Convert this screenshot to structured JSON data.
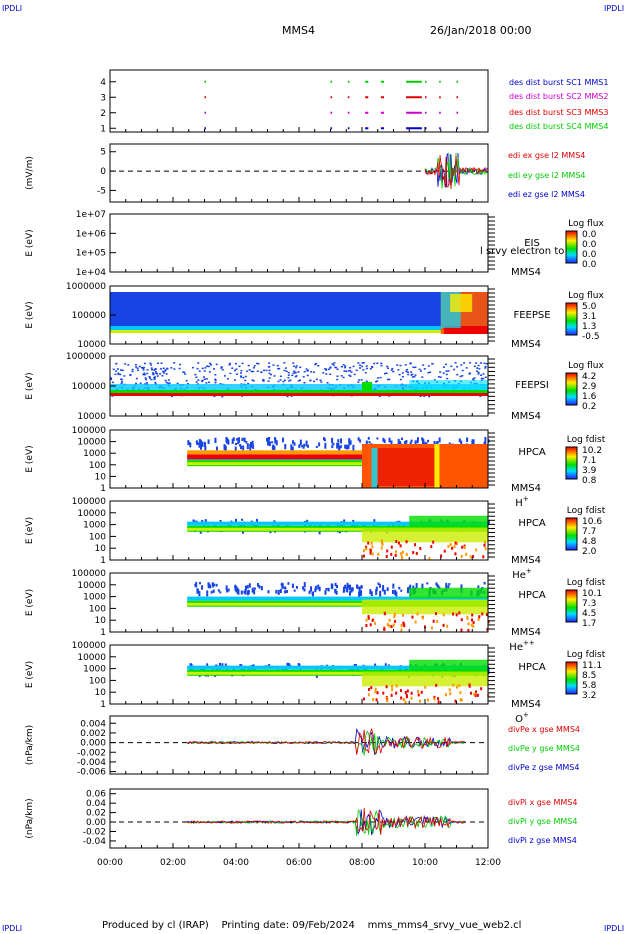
{
  "header": {
    "corner_label": "IPDLI",
    "mission": "MMS4",
    "date": "26/Jan/2018 00:00"
  },
  "footer": {
    "produced_by": "Produced by cl (IRAP)",
    "printing_date": "Printing date: 09/Feb/2024",
    "file": "mms_mms4_srvy_vue_web2.cl"
  },
  "chart_data": {
    "type": "line",
    "x_axis": {
      "ticks": [
        "00:00",
        "02:00",
        "04:00",
        "06:00",
        "08:00",
        "10:00",
        "12:00"
      ],
      "range_hours": [
        0,
        12
      ]
    },
    "colors": {
      "red": "#dd0000",
      "green": "#00cc00",
      "blue": "#0000cc",
      "magenta": "#cc00cc"
    },
    "panels": [
      {
        "id": "burst",
        "type": "scatter",
        "yticks": [
          "1",
          "2",
          "3",
          "4"
        ],
        "legend": [
          {
            "text": "des dist burst SC1 MMS1",
            "color": "#0000cc"
          },
          {
            "text": "des dist burst SC2 MMS2",
            "color": "#cc00cc"
          },
          {
            "text": "des dist burst SC3 MMS3",
            "color": "#dd0000"
          },
          {
            "text": "des dist burst SC4 MMS4",
            "color": "#00cc00"
          }
        ],
        "burst_intervals_hours": [
          [
            3.0,
            3.03
          ],
          [
            7.0,
            7.05
          ],
          [
            7.55,
            7.6
          ],
          [
            8.1,
            8.2
          ],
          [
            8.6,
            8.7
          ],
          [
            9.4,
            9.9
          ],
          [
            10.0,
            10.02
          ],
          [
            10.45,
            10.5
          ],
          [
            11.0,
            11.05
          ]
        ]
      },
      {
        "id": "edi",
        "type": "line",
        "ylabel": "(mV/m)",
        "yticks": [
          "5",
          "0",
          "-5"
        ],
        "yrange": [
          -8,
          7
        ],
        "legend": [
          {
            "text": "edi ex gse l2 MMS4",
            "color": "#dd0000"
          },
          {
            "text": "edi ey gse l2 MMS4",
            "color": "#00cc00"
          },
          {
            "text": "edi ez gse l2 MMS4",
            "color": "#0000cc"
          }
        ],
        "data_start_hours": 10.0
      },
      {
        "id": "eis",
        "type": "heatmap",
        "ylabel": "E (eV)",
        "yticks": [
          "1e+07",
          "1e+06",
          "1e+05",
          "1e+04"
        ],
        "labels": [
          "EIS",
          "MMS4"
        ],
        "overlay_label": "l srvy electron to",
        "colorbar": {
          "title": "Log flux",
          "ticks": [
            "0.0",
            "0.0",
            "0.0",
            "0.0"
          ]
        },
        "fill_start_hours": null
      },
      {
        "id": "feepse",
        "type": "heatmap",
        "ylabel": "E (eV)",
        "yticks": [
          "1000000",
          "100000",
          "10000"
        ],
        "labels": [
          "FEEPSE",
          "MMS4"
        ],
        "colorbar": {
          "title": "Log flux",
          "ticks": [
            "5.0",
            "3.1",
            "1.3",
            "-0.5"
          ]
        },
        "fill_start_hours": 0
      },
      {
        "id": "feepsi",
        "type": "heatmap",
        "ylabel": "E (eV)",
        "yticks": [
          "1000000",
          "100000",
          "10000"
        ],
        "labels": [
          "FEEPSI",
          "MMS4"
        ],
        "colorbar": {
          "title": "Log flux",
          "ticks": [
            "4.2",
            "2.9",
            "1.6",
            "0.2"
          ]
        },
        "fill_start_hours": 0
      },
      {
        "id": "hpca-h",
        "type": "heatmap",
        "ylabel": "E (eV)",
        "yticks": [
          "100000",
          "10000",
          "1000",
          "100",
          "10",
          "1"
        ],
        "labels": [
          "HPCA",
          "MMS4"
        ],
        "species": "H",
        "species_charge": "+",
        "colorbar": {
          "title": "Log fdist",
          "ticks": [
            "10.2",
            "7.1",
            "3.9",
            "0.8"
          ]
        },
        "fill_start_hours": 2.45
      },
      {
        "id": "hpca-he",
        "type": "heatmap",
        "ylabel": "E (eV)",
        "yticks": [
          "100000",
          "10000",
          "1000",
          "100",
          "10",
          "1"
        ],
        "labels": [
          "HPCA",
          "MMS4"
        ],
        "species": "He",
        "species_charge": "+",
        "colorbar": {
          "title": "Log fdist",
          "ticks": [
            "10.6",
            "7.7",
            "4.8",
            "2.0"
          ]
        },
        "fill_start_hours": 2.45
      },
      {
        "id": "hpca-he2",
        "type": "heatmap",
        "ylabel": "E (eV)",
        "yticks": [
          "100000",
          "10000",
          "1000",
          "100",
          "10",
          "1"
        ],
        "labels": [
          "HPCA",
          "MMS4"
        ],
        "species": "He",
        "species_charge": "++",
        "colorbar": {
          "title": "Log fdist",
          "ticks": [
            "10.1",
            "7.3",
            "4.5",
            "1.7"
          ]
        },
        "fill_start_hours": 2.45
      },
      {
        "id": "hpca-o",
        "type": "heatmap",
        "ylabel": "E (eV)",
        "yticks": [
          "100000",
          "10000",
          "1000",
          "100",
          "10",
          "1"
        ],
        "labels": [
          "HPCA",
          "MMS4"
        ],
        "species": "O",
        "species_charge": "+",
        "colorbar": {
          "title": "Log fdist",
          "ticks": [
            "11.1",
            "8.5",
            "5.8",
            "3.2"
          ]
        },
        "fill_start_hours": 2.45
      },
      {
        "id": "divpe",
        "type": "line",
        "ylabel": "(nPa/km)",
        "yticks": [
          "0.004",
          "0.002",
          "0.000",
          "-0.002",
          "-0.004",
          "-0.006"
        ],
        "yrange": [
          -0.0065,
          0.0055
        ],
        "legend": [
          {
            "text": "divPe x gse MMS4",
            "color": "#dd0000"
          },
          {
            "text": "divPe y gse MMS4",
            "color": "#00cc00"
          },
          {
            "text": "divPe z gse MMS4",
            "color": "#0000cc"
          }
        ],
        "data_start_hours": 2.45
      },
      {
        "id": "divpi",
        "type": "line",
        "ylabel": "(nPa/km)",
        "yticks": [
          "0.06",
          "0.04",
          "0.02",
          "0.00",
          "-0.02",
          "-0.04"
        ],
        "yrange": [
          -0.055,
          0.07
        ],
        "legend": [
          {
            "text": "divPi x gse MMS4",
            "color": "#dd0000"
          },
          {
            "text": "divPi y gse MMS4",
            "color": "#00cc00"
          },
          {
            "text": "divPi z gse MMS4",
            "color": "#0000cc"
          }
        ],
        "data_start_hours": 2.45
      }
    ]
  }
}
